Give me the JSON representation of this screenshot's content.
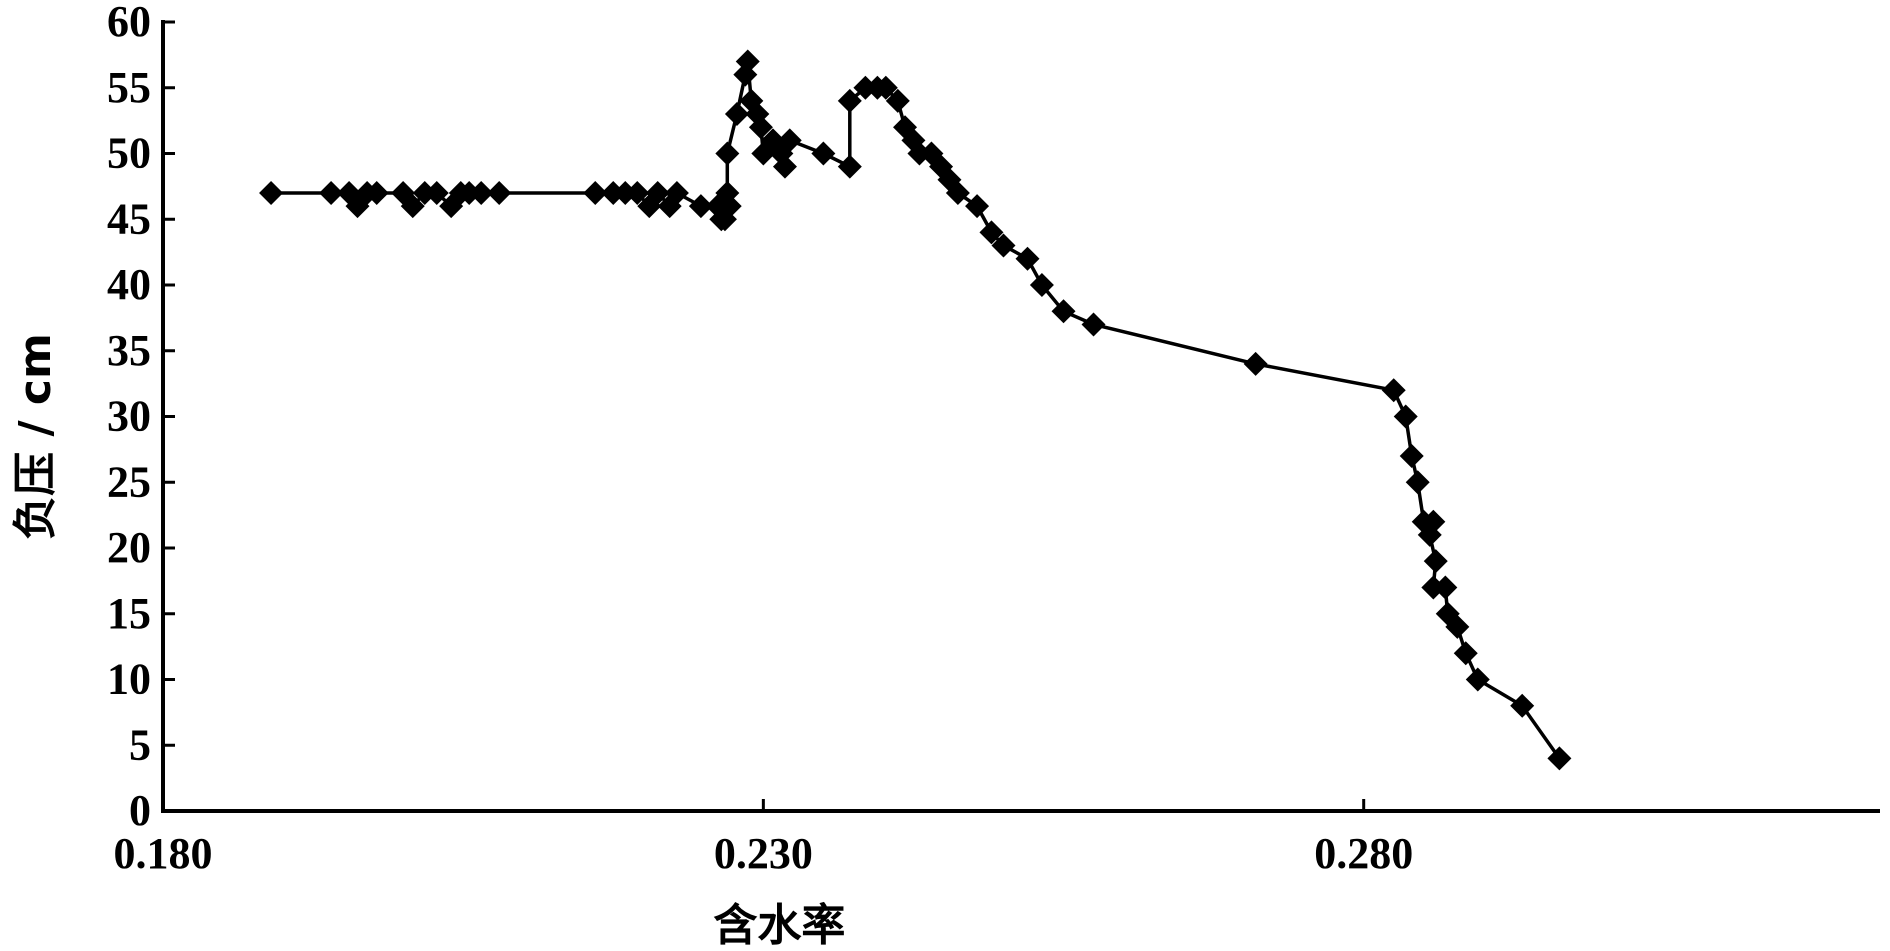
{
  "chart_data": {
    "type": "line",
    "title": "",
    "xlabel": "含水率",
    "ylabel": "负压 / cm",
    "xlim": [
      0.18,
      0.323
    ],
    "ylim": [
      0,
      60
    ],
    "x_ticks": [
      0.18,
      0.23,
      0.28
    ],
    "x_tick_labels": [
      "0.180",
      "0.230",
      "0.280"
    ],
    "y_ticks": [
      0,
      5,
      10,
      15,
      20,
      25,
      30,
      35,
      40,
      45,
      50,
      55,
      60
    ],
    "y_tick_labels": [
      "0",
      "5",
      "10",
      "15",
      "20",
      "25",
      "30",
      "35",
      "40",
      "45",
      "50",
      "55",
      "60"
    ],
    "grid": false,
    "legend": "none",
    "marker": "diamond",
    "line_color": "#000000",
    "marker_color": "#000000",
    "series": [
      {
        "points": [
          [
            0.189,
            47
          ],
          [
            0.194,
            47
          ],
          [
            0.1955,
            47
          ],
          [
            0.1962,
            46
          ],
          [
            0.197,
            47
          ],
          [
            0.1978,
            47
          ],
          [
            0.2,
            47
          ],
          [
            0.2008,
            46
          ],
          [
            0.2018,
            47
          ],
          [
            0.2028,
            47
          ],
          [
            0.204,
            46
          ],
          [
            0.2048,
            47
          ],
          [
            0.2055,
            47
          ],
          [
            0.2065,
            47
          ],
          [
            0.208,
            47
          ],
          [
            0.216,
            47
          ],
          [
            0.2175,
            47
          ],
          [
            0.2185,
            47
          ],
          [
            0.2195,
            47
          ],
          [
            0.2205,
            46
          ],
          [
            0.2212,
            47
          ],
          [
            0.2222,
            46
          ],
          [
            0.2228,
            47
          ],
          [
            0.2248,
            46
          ],
          [
            0.2262,
            46
          ],
          [
            0.2265,
            45
          ],
          [
            0.2268,
            45
          ],
          [
            0.2272,
            46
          ],
          [
            0.227,
            47
          ],
          [
            0.227,
            50
          ],
          [
            0.2278,
            53
          ],
          [
            0.2285,
            56
          ],
          [
            0.2287,
            57
          ],
          [
            0.229,
            54
          ],
          [
            0.2295,
            53
          ],
          [
            0.2298,
            52
          ],
          [
            0.23,
            50
          ],
          [
            0.2308,
            51
          ],
          [
            0.2315,
            50
          ],
          [
            0.2318,
            49
          ],
          [
            0.2322,
            51
          ],
          [
            0.235,
            50
          ],
          [
            0.2372,
            49
          ],
          [
            0.2372,
            54
          ],
          [
            0.2385,
            55
          ],
          [
            0.2395,
            55
          ],
          [
            0.2402,
            55
          ],
          [
            0.2412,
            54
          ],
          [
            0.2418,
            52
          ],
          [
            0.2425,
            51
          ],
          [
            0.243,
            50
          ],
          [
            0.244,
            50
          ],
          [
            0.2448,
            49
          ],
          [
            0.2455,
            48
          ],
          [
            0.2462,
            47
          ],
          [
            0.2478,
            46
          ],
          [
            0.249,
            44
          ],
          [
            0.25,
            43
          ],
          [
            0.252,
            42
          ],
          [
            0.2532,
            40
          ],
          [
            0.255,
            38
          ],
          [
            0.2575,
            37
          ],
          [
            0.271,
            34
          ],
          [
            0.2825,
            32
          ],
          [
            0.2835,
            30
          ],
          [
            0.284,
            27
          ],
          [
            0.2845,
            25
          ],
          [
            0.285,
            22
          ],
          [
            0.2858,
            22
          ],
          [
            0.2855,
            21
          ],
          [
            0.286,
            19
          ],
          [
            0.2858,
            17
          ],
          [
            0.2868,
            17
          ],
          [
            0.287,
            15
          ],
          [
            0.2878,
            14
          ],
          [
            0.2885,
            12
          ],
          [
            0.2895,
            10
          ],
          [
            0.2932,
            8
          ],
          [
            0.2963,
            4
          ]
        ]
      }
    ]
  }
}
